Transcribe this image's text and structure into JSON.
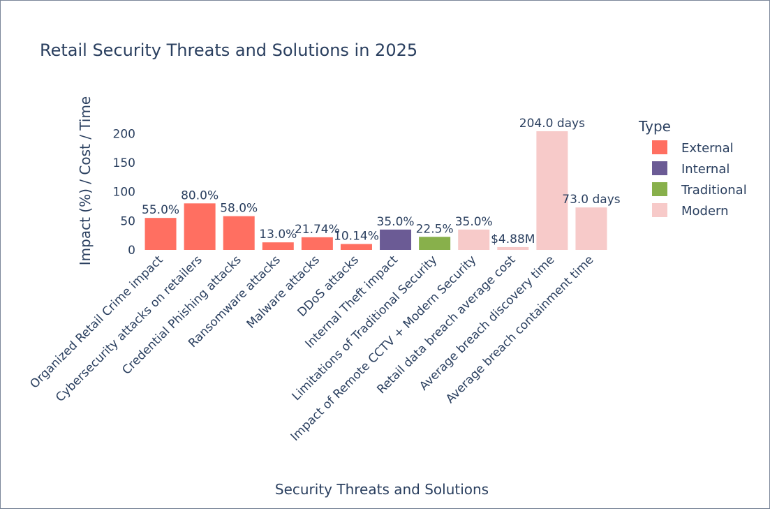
{
  "chart_data": {
    "type": "bar",
    "title": "Retail Security Threats and Solutions in 2025",
    "xlabel": "Security Threats and Solutions",
    "ylabel": "Impact (%) / Cost / Time",
    "ylim": [
      0,
      215
    ],
    "yticks": [
      0,
      50,
      100,
      150,
      200
    ],
    "grid": false,
    "legend": {
      "title": "Type",
      "placement": "right",
      "entries": [
        {
          "name": "External",
          "color": "#FF6F61"
        },
        {
          "name": "Internal",
          "color": "#6B5B95"
        },
        {
          "name": "Traditional",
          "color": "#88B04B"
        },
        {
          "name": "Modern",
          "color": "#F7CAC9"
        }
      ]
    },
    "categories": [
      "Organized Retail Crime impact",
      "Cybersecurity attacks on retailers",
      "Credential Phishing attacks",
      "Ransomware attacks",
      "Malware attacks",
      "DDoS attacks",
      "Internal Theft impact",
      "Limitations of Traditional Security",
      "Impact of Remote CCTV + Modern Security",
      "Retail data breach average cost",
      "Average breach discovery time",
      "Average breach containment time"
    ],
    "values": [
      55.0,
      80.0,
      58.0,
      13.0,
      21.74,
      10.14,
      35.0,
      22.5,
      35.0,
      4.88,
      204.0,
      73.0
    ],
    "labels": [
      "55.0%",
      "80.0%",
      "58.0%",
      "13.0%",
      "21.74%",
      "10.14%",
      "35.0%",
      "22.5%",
      "35.0%",
      "$4.88M",
      "204.0 days",
      "73.0 days"
    ],
    "types": [
      "External",
      "External",
      "External",
      "External",
      "External",
      "External",
      "Internal",
      "Traditional",
      "Modern",
      "Modern",
      "Modern",
      "Modern"
    ]
  }
}
